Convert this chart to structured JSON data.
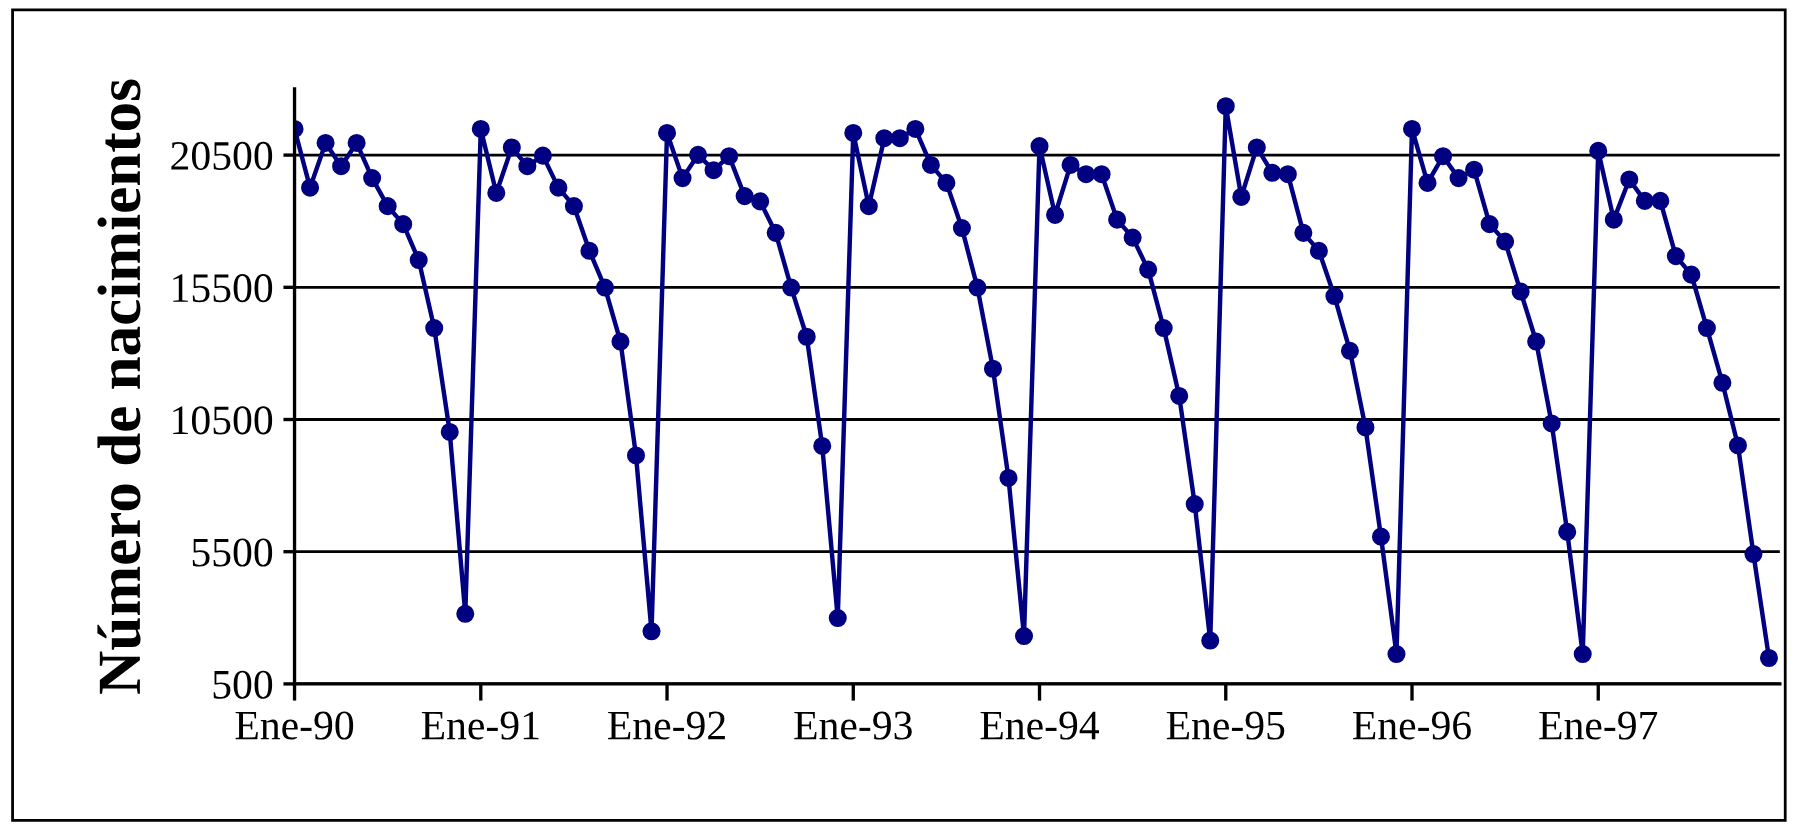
{
  "chart_data": {
    "type": "line",
    "ylabel": "Número de nacimientos",
    "categories": [
      "Ene-90",
      null,
      null,
      null,
      null,
      null,
      null,
      null,
      null,
      null,
      null,
      null,
      "Ene-91",
      null,
      null,
      null,
      null,
      null,
      null,
      null,
      null,
      null,
      null,
      null,
      "Ene-92",
      null,
      null,
      null,
      null,
      null,
      null,
      null,
      null,
      null,
      null,
      null,
      "Ene-93",
      null,
      null,
      null,
      null,
      null,
      null,
      null,
      null,
      null,
      null,
      null,
      "Ene-94",
      null,
      null,
      null,
      null,
      null,
      null,
      null,
      null,
      null,
      null,
      null,
      "Ene-95",
      null,
      null,
      null,
      null,
      null,
      null,
      null,
      null,
      null,
      null,
      null,
      "Ene-96",
      null,
      null,
      null,
      null,
      null,
      null,
      null,
      null,
      null,
      null,
      null,
      "Ene-97",
      null,
      null,
      null,
      null,
      null,
      null,
      null,
      null,
      null,
      null,
      null
    ],
    "series": [
      {
        "color": "#000080",
        "values": [
          21490,
          19270,
          20960,
          20080,
          20960,
          19630,
          18570,
          17890,
          16530,
          13960,
          10030,
          3150,
          21490,
          19070,
          20790,
          20080,
          20480,
          19270,
          18570,
          16880,
          15490,
          13450,
          9140,
          2490,
          21340,
          19630,
          20510,
          19930,
          20460,
          18950,
          18750,
          17560,
          15490,
          13630,
          9500,
          2990,
          21340,
          18570,
          21140,
          21140,
          21490,
          20130,
          19450,
          17740,
          15490,
          12420,
          8290,
          2310,
          20840,
          18240,
          20130,
          19780,
          19780,
          18060,
          17380,
          16170,
          13960,
          11390,
          7300,
          2140,
          22350,
          18920,
          20790,
          19830,
          19780,
          17560,
          16880,
          15170,
          13100,
          10200,
          6070,
          1630,
          21490,
          19450,
          20460,
          19630,
          19950,
          17890,
          17230,
          15340,
          13450,
          10350,
          6250,
          1630,
          20660,
          18060,
          19580,
          18770,
          18770,
          16680,
          15980,
          13960,
          11890,
          9520,
          5410,
          1480
        ]
      }
    ],
    "ylim": [
      500,
      23000
    ],
    "yticks": [
      500,
      5500,
      10500,
      15500,
      20500
    ],
    "grid": "y",
    "marker": "circle",
    "line_style": "solid",
    "legend": false
  }
}
